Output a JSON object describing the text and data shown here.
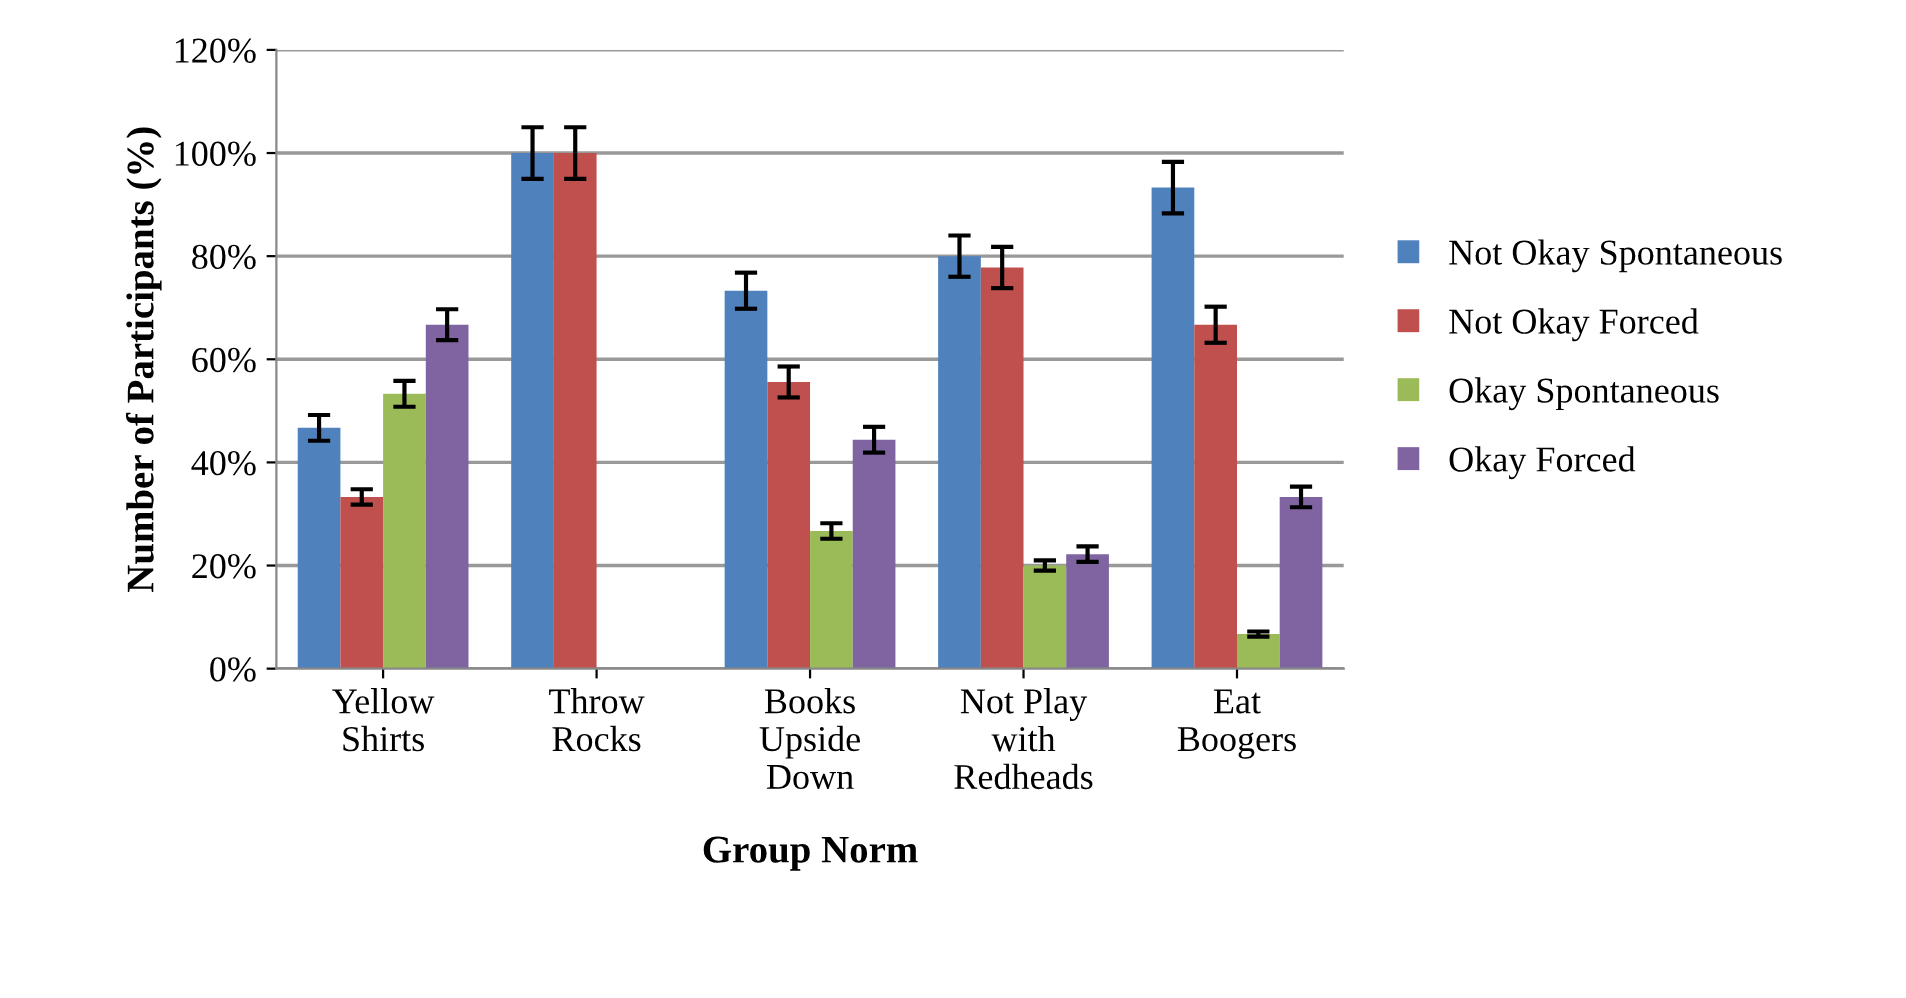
{
  "chart_data": {
    "type": "bar",
    "xlabel": "Group Norm",
    "ylabel": "Number of Participants (%)",
    "categories": [
      "Yellow\nShirts",
      "Throw\nRocks",
      "Books\nUpside\nDown",
      "Not Play\nwith\nRedheads",
      "Eat\nBoogers"
    ],
    "series": [
      {
        "name": "Not Okay Spontaneous",
        "color": "#4f81bd",
        "values": [
          46.7,
          100,
          73.3,
          80,
          93.3
        ],
        "errors": [
          2.5,
          5,
          3.5,
          4,
          5
        ]
      },
      {
        "name": "Not Okay Forced",
        "color": "#c0504d",
        "values": [
          33.3,
          100,
          55.6,
          77.8,
          66.7
        ],
        "errors": [
          1.5,
          5,
          3,
          4,
          3.5
        ]
      },
      {
        "name": "Okay Spontaneous",
        "color": "#9bbb59",
        "values": [
          53.3,
          0,
          26.7,
          20,
          6.7
        ],
        "errors": [
          2.5,
          null,
          1.5,
          1,
          0.5
        ]
      },
      {
        "name": "Okay Forced",
        "color": "#8064a2",
        "values": [
          66.7,
          0,
          44.4,
          22.2,
          33.3
        ],
        "errors": [
          3,
          null,
          2.5,
          1.5,
          2
        ]
      }
    ],
    "ylim": [
      0,
      120
    ],
    "yticks": [
      {
        "value": 0,
        "label": "0%"
      },
      {
        "value": 20,
        "label": "20%"
      },
      {
        "value": 40,
        "label": "40%"
      },
      {
        "value": 60,
        "label": "60%"
      },
      {
        "value": 80,
        "label": "80%"
      },
      {
        "value": 100,
        "label": "100%"
      },
      {
        "value": 120,
        "label": "120%"
      }
    ],
    "grid": "y",
    "legend": "right"
  }
}
